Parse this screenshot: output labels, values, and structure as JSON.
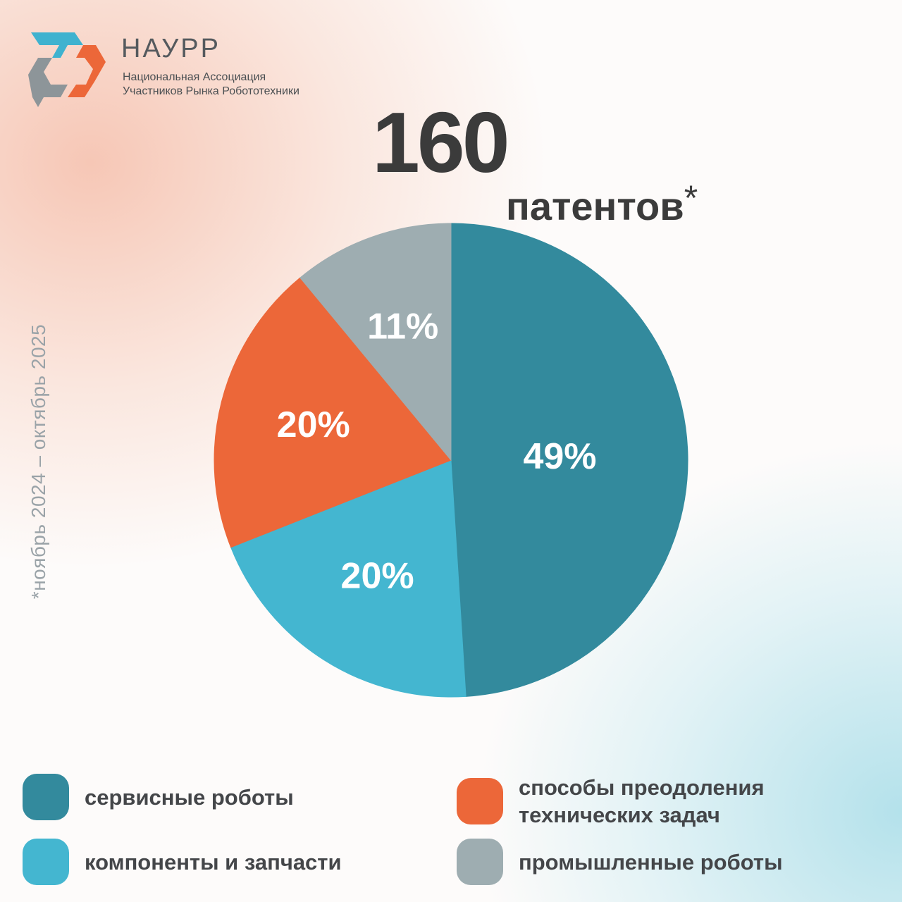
{
  "brand": {
    "name": "НАУРР",
    "subtitle_line1": "Национальная Ассоциация",
    "subtitle_line2": "Участников Рынка Робототехники"
  },
  "headline": {
    "number": "160",
    "unit": "патентов",
    "footnote_mark": "*"
  },
  "period_note": "*ноябрь 2024 – октябрь 2025",
  "chart_data": {
    "type": "pie",
    "total": 160,
    "slices": [
      {
        "name": "сервисные роботы",
        "value": 49,
        "label": "49%",
        "color": "#338a9d"
      },
      {
        "name": "компоненты и запчасти",
        "value": 20,
        "label": "20%",
        "color": "#44b6d0"
      },
      {
        "name": "способы преодоления технических задач",
        "value": 20,
        "label": "20%",
        "color": "#ec6739"
      },
      {
        "name": "промышленные роботы",
        "value": 11,
        "label": "11%",
        "color": "#9eadb1"
      }
    ]
  },
  "legend": [
    {
      "label_line1": "сервисные роботы",
      "label_line2": "",
      "color": "#338a9d"
    },
    {
      "label_line1": "компоненты и запчасти",
      "label_line2": "",
      "color": "#44b6d0"
    },
    {
      "label_line1": "способы преодоления",
      "label_line2": "технических задач",
      "color": "#ec6739"
    },
    {
      "label_line1": "промышленные роботы",
      "label_line2": "",
      "color": "#9eadb1"
    }
  ],
  "colors": {
    "text_dark": "#3b3b3b",
    "logo_teal": "#3fb2cf",
    "logo_orange": "#ec6739",
    "logo_gray": "#8d9599"
  }
}
